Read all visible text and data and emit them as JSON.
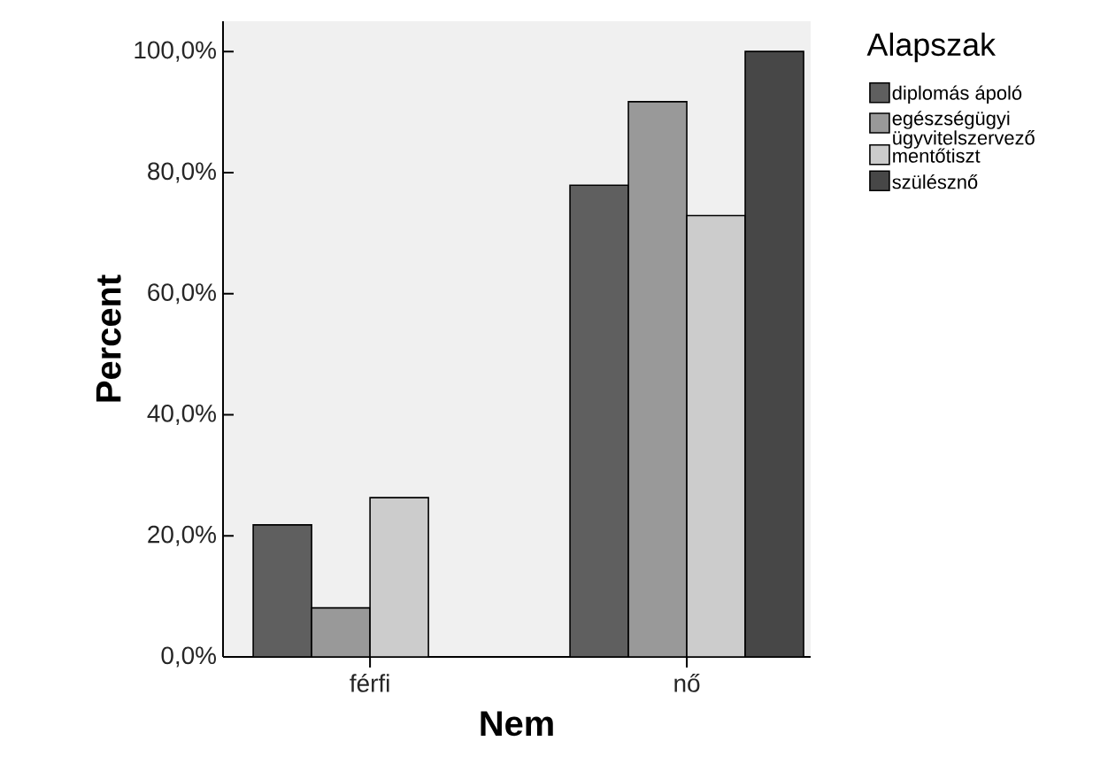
{
  "chart_data": {
    "type": "bar",
    "xlabel": "Nem",
    "ylabel": "Percent",
    "legend_title": "Alapszak",
    "categories": [
      "férfi",
      "nő"
    ],
    "series": [
      {
        "name": "diplomás ápoló",
        "color": "#5f5f5f",
        "values": [
          21.8,
          77.9
        ]
      },
      {
        "name": "egészségügyi ügyvitelszervező",
        "color": "#999999",
        "values": [
          8.1,
          91.7
        ]
      },
      {
        "name": "mentőtiszt",
        "color": "#cccccc",
        "values": [
          26.3,
          72.9
        ]
      },
      {
        "name": "szülésznő",
        "color": "#474747",
        "values": [
          null,
          100
        ]
      }
    ],
    "ylim": [
      0,
      105
    ],
    "yticks": [
      {
        "value": 0,
        "label": "0,0%"
      },
      {
        "value": 20,
        "label": "20,0%"
      },
      {
        "value": 40,
        "label": "40,0%"
      },
      {
        "value": 60,
        "label": "60,0%"
      },
      {
        "value": 80,
        "label": "80,0%"
      },
      {
        "value": 100,
        "label": "100,0%"
      }
    ],
    "legend": "right"
  }
}
